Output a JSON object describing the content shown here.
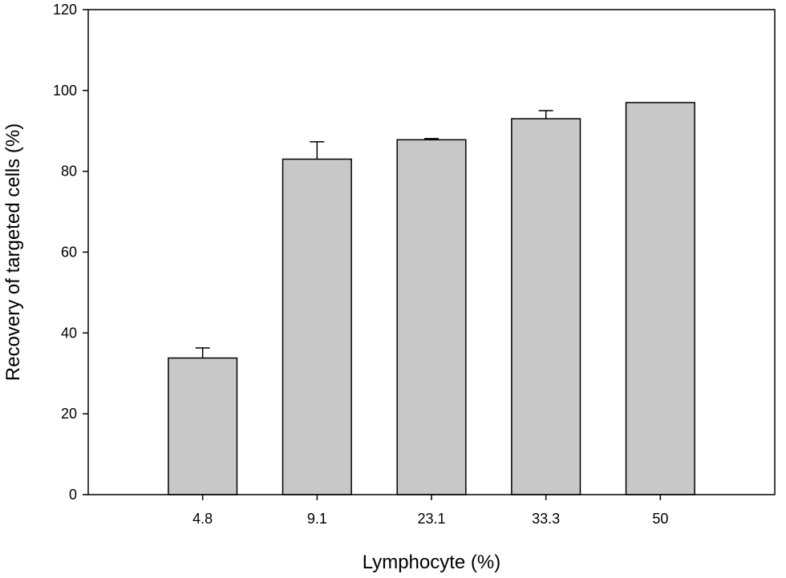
{
  "chart_data": {
    "type": "bar",
    "title": "",
    "xlabel": "Lymphocyte (%)",
    "ylabel": "Recovery of targeted cells (%)",
    "categories": [
      "4.8",
      "9.1",
      "23.1",
      "33.3",
      "50"
    ],
    "values": [
      33.8,
      83.0,
      87.8,
      93.0,
      97.0
    ],
    "errors": [
      2.5,
      4.3,
      0.3,
      2.0,
      0.0
    ],
    "ylim": [
      0,
      120
    ],
    "yticks": [
      0,
      20,
      40,
      60,
      80,
      100,
      120
    ],
    "grid": false,
    "legend": "none",
    "bar_color": "#c8c8c8",
    "edge_color": "#000000"
  }
}
